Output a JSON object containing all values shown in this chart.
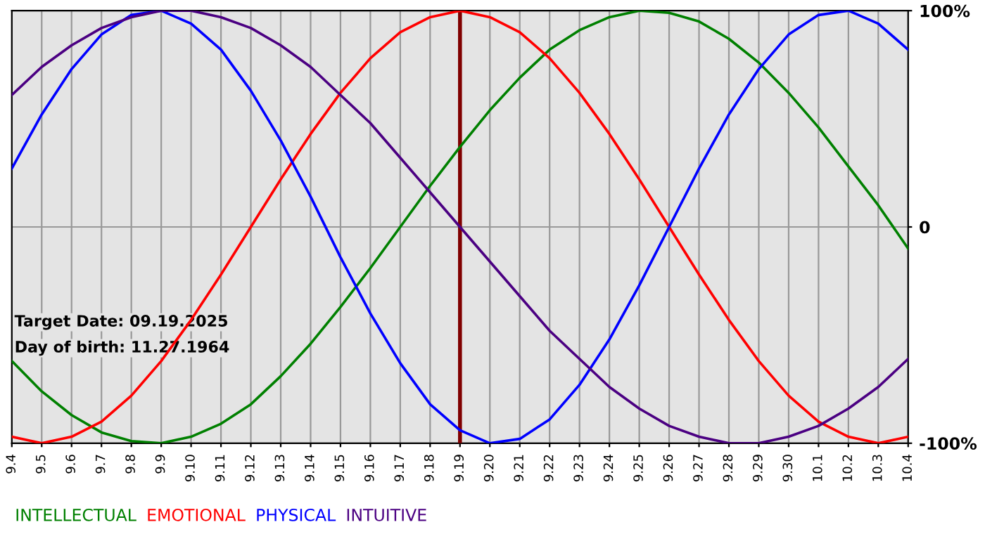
{
  "chart_data": {
    "type": "line",
    "categories": [
      "9.4",
      "9.5",
      "9.6",
      "9.7",
      "9.8",
      "9.9",
      "9.10",
      "9.11",
      "9.12",
      "9.13",
      "9.14",
      "9.15",
      "9.16",
      "9.17",
      "9.18",
      "9.19",
      "9.20",
      "9.21",
      "9.22",
      "9.23",
      "9.24",
      "9.25",
      "9.26",
      "9.27",
      "9.28",
      "9.29",
      "9.30",
      "10.1",
      "10.2",
      "10.3",
      "10.4"
    ],
    "series": [
      {
        "name": "INTELLECTUAL",
        "color": "#008000",
        "values": [
          -62,
          -76,
          -87,
          -95,
          -99,
          -100,
          -97,
          -91,
          -82,
          -69,
          -54,
          -37,
          -19,
          0,
          19,
          37,
          54,
          69,
          82,
          91,
          97,
          100,
          99,
          95,
          87,
          76,
          62,
          46,
          28,
          10,
          -10
        ]
      },
      {
        "name": "EMOTIONAL",
        "color": "#ff0000",
        "values": [
          -97,
          -100,
          -97,
          -90,
          -78,
          -62,
          -43,
          -22,
          0,
          22,
          43,
          62,
          78,
          90,
          97,
          100,
          97,
          90,
          78,
          62,
          43,
          22,
          0,
          -22,
          -43,
          -62,
          -78,
          -90,
          -97,
          -100,
          -97
        ]
      },
      {
        "name": "PHYSICAL",
        "color": "#0000ff",
        "values": [
          27,
          52,
          73,
          89,
          98,
          100,
          94,
          82,
          63,
          40,
          14,
          -14,
          -40,
          -63,
          -82,
          -94,
          -100,
          -98,
          -89,
          -73,
          -52,
          -27,
          0,
          27,
          52,
          73,
          89,
          98,
          100,
          94,
          82
        ]
      },
      {
        "name": "INTUITIVE",
        "color": "#4b0082",
        "values": [
          61,
          74,
          84,
          92,
          97,
          100,
          100,
          97,
          92,
          84,
          74,
          61,
          48,
          32,
          16,
          0,
          -16,
          -32,
          -48,
          -61,
          -74,
          -84,
          -92,
          -97,
          -100,
          -100,
          -97,
          -92,
          -84,
          -74,
          -61
        ]
      }
    ],
    "ylim": [
      -100,
      100
    ],
    "yticks": [
      {
        "value": -100,
        "label": "-100%"
      },
      0,
      {
        "value": 100,
        "label": "100%"
      }
    ],
    "ref_lines": [
      {
        "axis": "x",
        "value": "9.19",
        "color": "#800000"
      }
    ],
    "annotations": [
      "Target Date: 09.19.2025",
      "Day of birth: 11.27.1964"
    ],
    "grid": true,
    "legend": "bottom left",
    "marker": "none",
    "line_style": "solid"
  }
}
